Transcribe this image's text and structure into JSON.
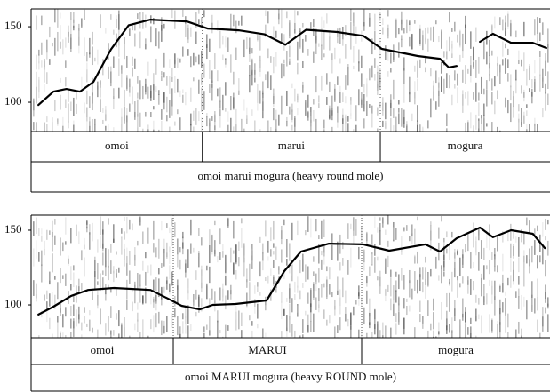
{
  "chart_data": [
    {
      "type": "line",
      "xlim": [
        0,
        100
      ],
      "ylim": [
        80.6,
        161.8
      ],
      "yticks": [
        100,
        150
      ],
      "color": "#000000",
      "x": [
        1.4,
        4.3,
        6.8,
        9.4,
        12,
        15.4,
        18.8,
        23,
        30,
        34,
        40,
        45,
        49,
        53,
        59,
        64,
        67.6,
        74.5,
        78.8,
        80.5,
        82,
        84,
        86.5,
        89,
        92.5,
        96.7,
        99.3
      ],
      "values": [
        98.2,
        107,
        108.8,
        107,
        113.5,
        135,
        151,
        154.7,
        153.5,
        148.8,
        147.6,
        145,
        138,
        148,
        146.5,
        144,
        135.3,
        130.6,
        128.8,
        123,
        124,
        null,
        140,
        145.3,
        139.4,
        139.4,
        135.9
      ],
      "boundaries": [
        33,
        67.3
      ],
      "words": [
        "omoi",
        "marui",
        "mogura"
      ],
      "sentence": "omoi marui mogura (heavy round mole)"
    },
    {
      "type": "line",
      "xlim": [
        0,
        100
      ],
      "ylim": [
        78,
        160.1
      ],
      "yticks": [
        100,
        150
      ],
      "color": "#000000",
      "x": [
        1.4,
        4.3,
        7.7,
        11,
        16,
        23,
        26.5,
        29,
        32.5,
        35,
        39.4,
        45.4,
        48.8,
        52,
        57.4,
        64,
        69,
        76,
        78.8,
        82,
        86.5,
        89,
        92.5,
        96.7,
        99
      ],
      "values": [
        93.5,
        98.8,
        106,
        110,
        111.3,
        110,
        104,
        99.4,
        97,
        100,
        100.6,
        103,
        122.6,
        135.7,
        141,
        140.5,
        136.3,
        140.5,
        135.7,
        144.6,
        151.8,
        145.3,
        150,
        147.6,
        138
      ],
      "boundaries": [
        27.4,
        63.7
      ],
      "words": [
        "omoi",
        "MARUI",
        "mogura"
      ],
      "sentence": "omoi MARUI mogura (heavy ROUND mole)"
    }
  ]
}
